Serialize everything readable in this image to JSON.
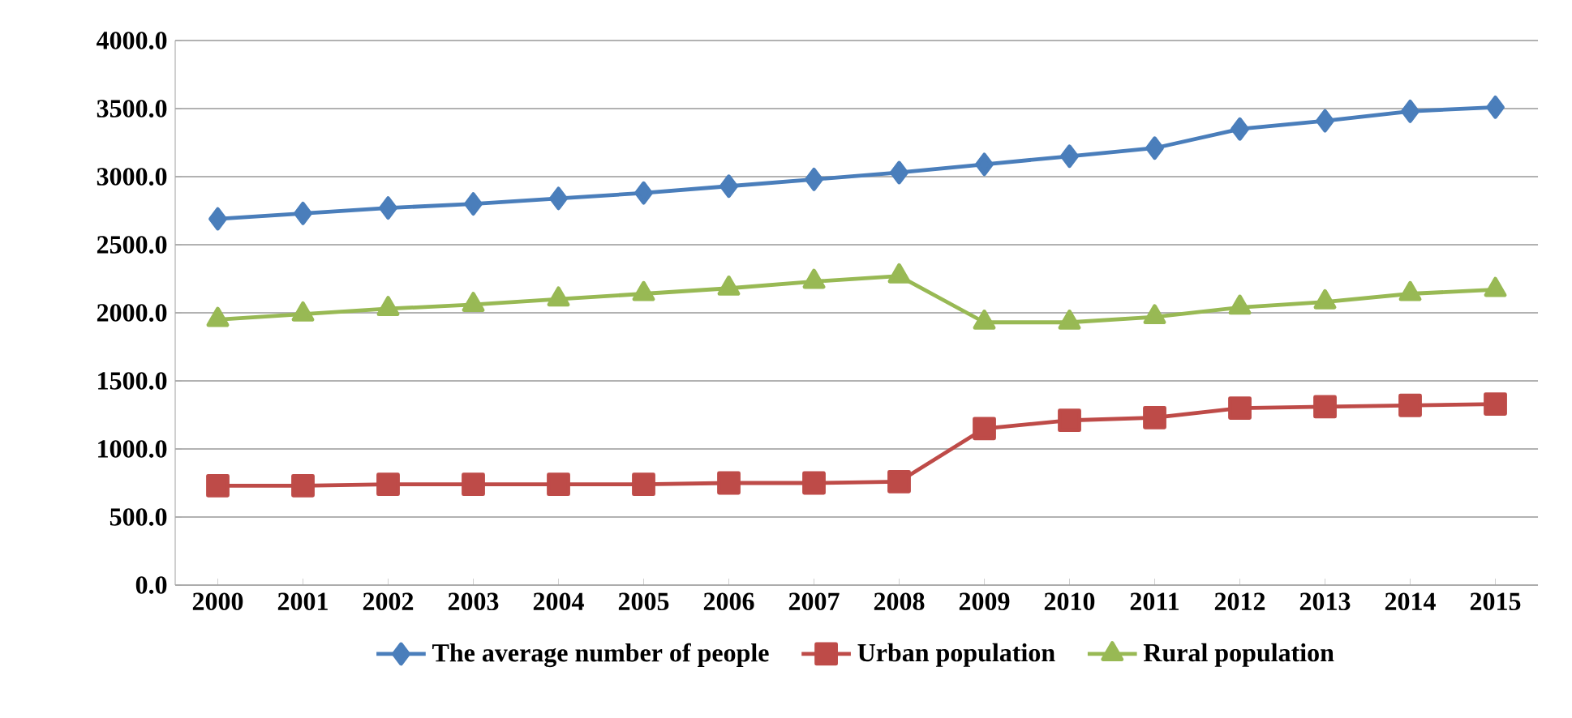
{
  "chart_data": {
    "type": "line",
    "categories": [
      "2000",
      "2001",
      "2002",
      "2003",
      "2004",
      "2005",
      "2006",
      "2007",
      "2008",
      "2009",
      "2010",
      "2011",
      "2012",
      "2013",
      "2014",
      "2015"
    ],
    "series": [
      {
        "name": "The average number of people",
        "color": "#4a7ebb",
        "marker": "diamond",
        "values": [
          2690,
          2730,
          2770,
          2800,
          2840,
          2880,
          2930,
          2980,
          3030,
          3090,
          3150,
          3210,
          3350,
          3410,
          3480,
          3510
        ]
      },
      {
        "name": "Urban population",
        "color": "#be4b48",
        "marker": "square",
        "values": [
          730,
          730,
          740,
          740,
          740,
          740,
          750,
          750,
          760,
          1150,
          1210,
          1230,
          1300,
          1310,
          1320,
          1330
        ]
      },
      {
        "name": "Rural population",
        "color": "#98b954",
        "marker": "triangle",
        "values": [
          1950,
          1990,
          2030,
          2060,
          2100,
          2140,
          2180,
          2230,
          2270,
          1930,
          1930,
          1970,
          2040,
          2080,
          2140,
          2170
        ]
      }
    ],
    "ylim": [
      0,
      4000
    ],
    "yticks": [
      {
        "value": 0,
        "label": "0.0"
      },
      {
        "value": 500,
        "label": "500.0"
      },
      {
        "value": 1000,
        "label": "1000.0"
      },
      {
        "value": 1500,
        "label": "1500.0"
      },
      {
        "value": 2000,
        "label": "2000.0"
      },
      {
        "value": 2500,
        "label": "2500.0"
      },
      {
        "value": 3000,
        "label": "3000.0"
      },
      {
        "value": 3500,
        "label": "3500.0"
      },
      {
        "value": 4000,
        "label": "4000.0"
      }
    ],
    "grid": "y",
    "legend": "bottom"
  }
}
